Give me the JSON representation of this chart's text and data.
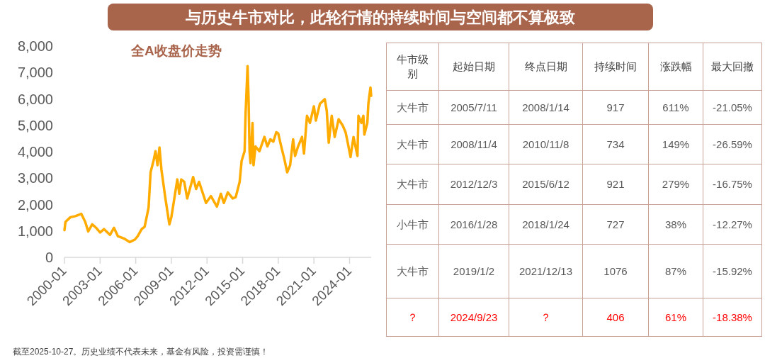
{
  "chart_data": [
    {
      "type": "line",
      "title": "与历史牛市对比，此轮行情的持续时间与空间都不算极致",
      "subtitle": "全A收盘价走势",
      "annotations": [
        "截至2025-10-27。历史业绩不代表未来，基金有风险，投资需谨慎！"
      ],
      "x": [
        "2000-01",
        "2000-02",
        "2000-07",
        "2000-12",
        "2001-06",
        "2001-10",
        "2002-01",
        "2002-05",
        "2002-09",
        "2003-01",
        "2003-05",
        "2003-11",
        "2004-03",
        "2004-07",
        "2005-01",
        "2005-07",
        "2005-12",
        "2006-03",
        "2006-07",
        "2006-10",
        "2007-02",
        "2007-04",
        "2007-07",
        "2007-09",
        "2007-11",
        "2008-01",
        "2008-03",
        "2008-07",
        "2008-11",
        "2009-01",
        "2009-04",
        "2009-07",
        "2009-09",
        "2009-11",
        "2010-02",
        "2010-05",
        "2010-11",
        "2011-02",
        "2011-05",
        "2011-12",
        "2012-05",
        "2012-11",
        "2013-03",
        "2013-06",
        "2013-10",
        "2014-03",
        "2014-06",
        "2014-10",
        "2014-12",
        "2015-03",
        "2015-04",
        "2015-06",
        "2015-07",
        "2015-08",
        "2015-09",
        "2015-11",
        "2015-12",
        "2016-02",
        "2016-06",
        "2016-11",
        "2017-02",
        "2017-05",
        "2017-08",
        "2017-11",
        "2018-01",
        "2018-04",
        "2018-07",
        "2018-10",
        "2019-01",
        "2019-04",
        "2019-06",
        "2019-09",
        "2020-01",
        "2020-03",
        "2020-06",
        "2020-09",
        "2021-01",
        "2021-03",
        "2021-07",
        "2021-12",
        "2022-02",
        "2022-04",
        "2022-07",
        "2022-10",
        "2023-02",
        "2023-06",
        "2023-09",
        "2023-11",
        "2024-02",
        "2024-05",
        "2024-09",
        "2024-10",
        "2025-01",
        "2025-03",
        "2025-04",
        "2025-07",
        "2025-08",
        "2025-10-05",
        "2025-10-27"
      ],
      "series": [
        {
          "color": "#ffab00",
          "values": [
            1030,
            1340,
            1520,
            1560,
            1650,
            1340,
            980,
            1250,
            1120,
            940,
            1070,
            850,
            1120,
            800,
            715,
            580,
            670,
            800,
            1070,
            1160,
            1880,
            3220,
            3660,
            4020,
            3490,
            4160,
            3310,
            2230,
            1250,
            1520,
            2230,
            2950,
            2410,
            2950,
            2860,
            2230,
            3040,
            2590,
            2860,
            2060,
            2320,
            1920,
            2410,
            2060,
            2460,
            2230,
            2280,
            2860,
            3660,
            4020,
            5450,
            7240,
            5990,
            4020,
            3570,
            5090,
            3490,
            4200,
            4020,
            4560,
            4200,
            4470,
            4380,
            4740,
            4690,
            4200,
            3750,
            3220,
            3490,
            4470,
            3840,
            4200,
            4560,
            3930,
            5360,
            5090,
            5720,
            5180,
            5810,
            5990,
            5540,
            4340,
            5360,
            4560,
            5230,
            5000,
            4740,
            4380,
            3800,
            4560,
            3840,
            5360,
            5090,
            5360,
            4650,
            5090,
            5810,
            6430,
            6120
          ]
        }
      ],
      "line_style": "solid",
      "xlim": [
        "2000-01",
        "2025-10-27"
      ],
      "xticks": [
        "2000-01",
        "2003-01",
        "2006-01",
        "2009-01",
        "2012-01",
        "2015-01",
        "2018-01",
        "2021-01",
        "2024-01"
      ],
      "ylim": [
        0,
        8000
      ],
      "yticks": [
        0,
        {
          "value": 1000,
          "label": "1,000"
        },
        {
          "value": 2000,
          "label": "2,000"
        },
        {
          "value": 3000,
          "label": "3,000"
        },
        {
          "value": 4000,
          "label": "4,000"
        },
        {
          "value": 5000,
          "label": "5,000"
        },
        {
          "value": 6000,
          "label": "6,000"
        },
        {
          "value": 7000,
          "label": "7,000"
        },
        {
          "value": 8000,
          "label": "8,000"
        }
      ]
    },
    {
      "type": "other",
      "categories": [
        "牛市级别",
        "起始日期",
        "终点日期",
        "持续时间",
        "涨跌幅",
        "最大回撤"
      ],
      "cell_labels": [
        [
          "大牛市",
          "2005/7/11",
          "2008/1/14",
          "917",
          "611%",
          "-21.05%"
        ],
        [
          "大牛市",
          "2008/11/4",
          "2010/11/8",
          "734",
          "149%",
          "-26.59%"
        ],
        [
          "大牛市",
          "2012/12/3",
          "2015/6/12",
          "921",
          "279%",
          "-16.75%"
        ],
        [
          "小牛市",
          "2016/1/28",
          "2018/1/24",
          "727",
          "38%",
          "-12.27%"
        ],
        [
          "大牛市",
          "2019/1/2",
          "2021/12/13",
          "1076",
          "87%",
          "-15.92%"
        ],
        [
          "？",
          "2024/9/23",
          "？",
          "406",
          "61%",
          "-18.38%"
        ]
      ],
      "colors": [
        "#595959",
        "#595959",
        "#595959",
        "#595959",
        "#595959",
        "#ff0000"
      ]
    }
  ]
}
